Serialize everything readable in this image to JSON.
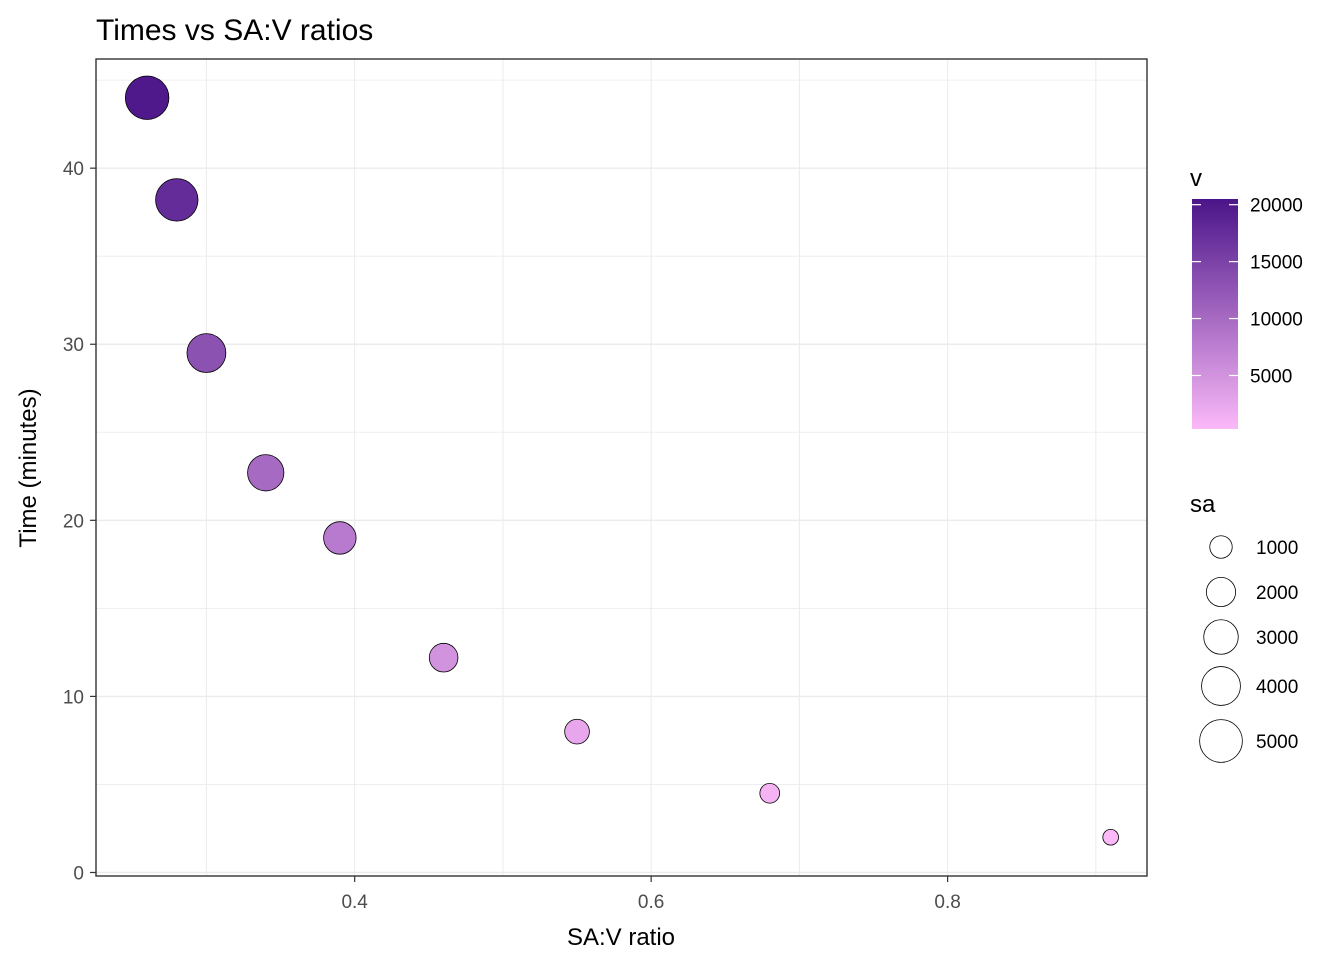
{
  "chart_data": {
    "type": "scatter",
    "title": "Times vs SA:V ratios",
    "xlabel": "SA:V ratio",
    "ylabel": "Time (minutes)",
    "xlim": [
      0.2255,
      0.9345
    ],
    "ylim": [
      -0.2,
      46.2
    ],
    "x_ticks": [
      0.4,
      0.6,
      0.8
    ],
    "x_tick_labels": [
      "0.4",
      "0.6",
      "0.8"
    ],
    "y_ticks": [
      0,
      10,
      20,
      30,
      40
    ],
    "y_tick_labels": [
      "0",
      "10",
      "20",
      "30",
      "40"
    ],
    "grid": true,
    "points": [
      {
        "x": 0.26,
        "y": 44.0,
        "v": 20000,
        "sa": 5200
      },
      {
        "x": 0.28,
        "y": 38.2,
        "v": 17700,
        "sa": 4900
      },
      {
        "x": 0.3,
        "y": 29.5,
        "v": 13000,
        "sa": 4000
      },
      {
        "x": 0.34,
        "y": 22.7,
        "v": 10000,
        "sa": 3400
      },
      {
        "x": 0.39,
        "y": 19.0,
        "v": 8000,
        "sa": 2600
      },
      {
        "x": 0.46,
        "y": 12.2,
        "v": 5000,
        "sa": 1900
      },
      {
        "x": 0.55,
        "y": 8.0,
        "v": 2500,
        "sa": 1300
      },
      {
        "x": 0.68,
        "y": 4.5,
        "v": 1000,
        "sa": 700
      },
      {
        "x": 0.91,
        "y": 2.0,
        "v": 300,
        "sa": 350
      }
    ],
    "legend": {
      "color": {
        "title": "v",
        "min": 300,
        "max": 20500,
        "low_color": "#fbb9f8",
        "high_color": "#4b1589",
        "breaks": [
          5000,
          10000,
          15000,
          20000
        ],
        "labels": [
          "5000",
          "10000",
          "15000",
          "20000"
        ]
      },
      "size": {
        "title": "sa",
        "breaks": [
          1000,
          2000,
          3000,
          4000,
          5000
        ],
        "labels": [
          "1000",
          "2000",
          "3000",
          "4000",
          "5000"
        ]
      },
      "placement": "right"
    },
    "colors": {
      "grid": "#ebebeb",
      "panel_border": "#333333",
      "point_stroke": "#000000",
      "axis_text": "#4d4d4d"
    }
  }
}
